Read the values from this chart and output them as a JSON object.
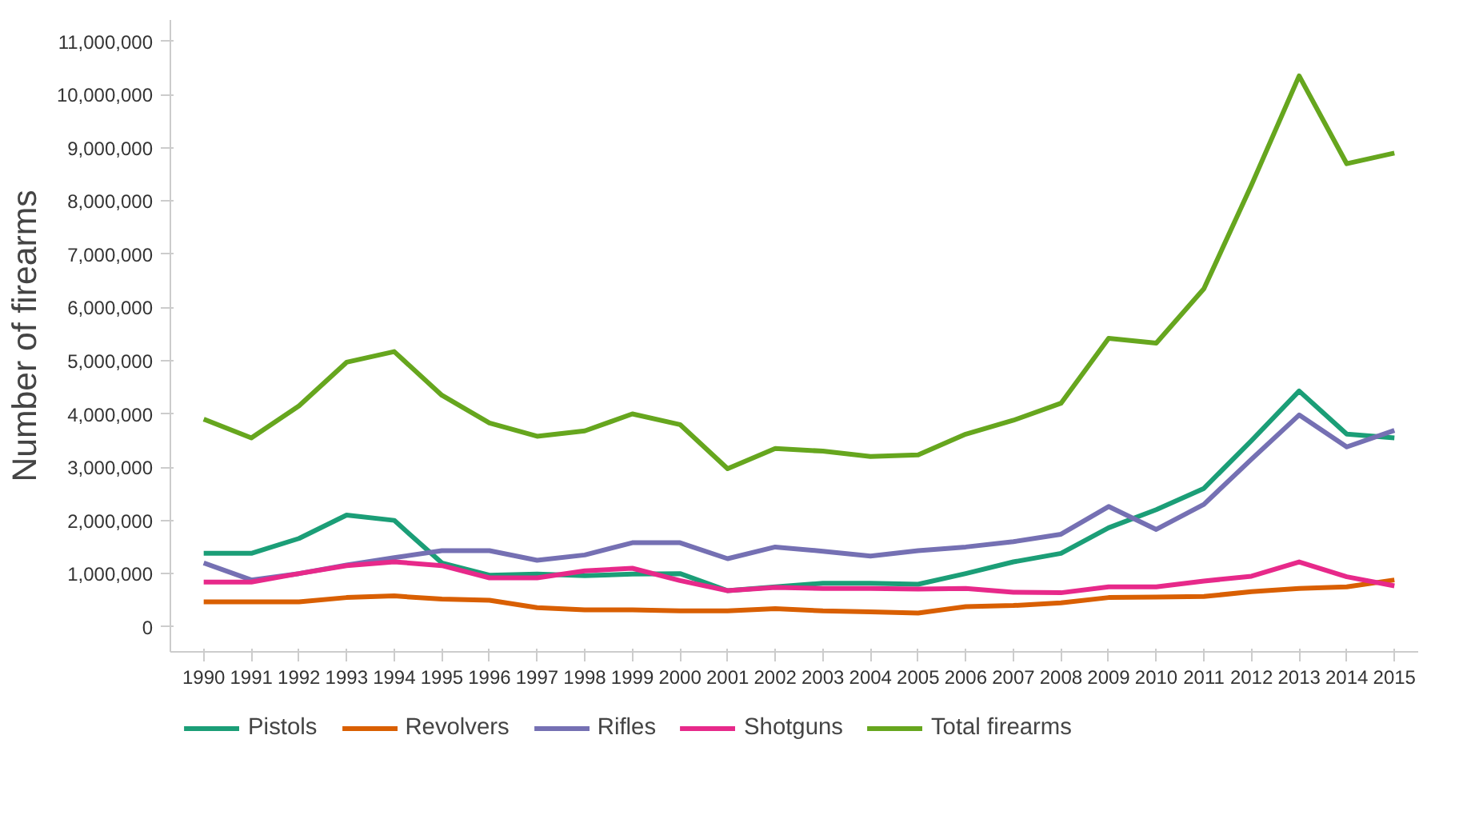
{
  "chart_data": {
    "type": "line",
    "ylabel": "Number of firearms",
    "categories": [
      "1990",
      "1991",
      "1992",
      "1993",
      "1994",
      "1995",
      "1996",
      "1997",
      "1998",
      "1999",
      "2000",
      "2001",
      "2002",
      "2003",
      "2004",
      "2005",
      "2006",
      "2007",
      "2008",
      "2009",
      "2010",
      "2011",
      "2012",
      "2013",
      "2014",
      "2015"
    ],
    "series": [
      {
        "name": "Pistols",
        "color": "#1b9e77",
        "values": [
          1380000,
          1380000,
          1660000,
          2100000,
          2000000,
          1200000,
          970000,
          990000,
          960000,
          990000,
          1000000,
          680000,
          750000,
          820000,
          820000,
          800000,
          1000000,
          1220000,
          1380000,
          1860000,
          2200000,
          2600000,
          3500000,
          4430000,
          3620000,
          3550000
        ]
      },
      {
        "name": "Revolvers",
        "color": "#d95f02",
        "values": [
          470000,
          470000,
          470000,
          550000,
          580000,
          520000,
          500000,
          360000,
          320000,
          320000,
          300000,
          300000,
          340000,
          300000,
          280000,
          260000,
          380000,
          400000,
          450000,
          550000,
          560000,
          570000,
          660000,
          720000,
          750000,
          880000
        ]
      },
      {
        "name": "Rifles",
        "color": "#7570b3",
        "values": [
          1200000,
          880000,
          1000000,
          1160000,
          1300000,
          1430000,
          1430000,
          1250000,
          1350000,
          1580000,
          1580000,
          1280000,
          1500000,
          1420000,
          1330000,
          1430000,
          1500000,
          1600000,
          1740000,
          2260000,
          1830000,
          2300000,
          3150000,
          3980000,
          3380000,
          3690000
        ]
      },
      {
        "name": "Shotguns",
        "color": "#e7298a",
        "values": [
          840000,
          840000,
          1000000,
          1150000,
          1220000,
          1150000,
          920000,
          920000,
          1050000,
          1100000,
          870000,
          680000,
          740000,
          720000,
          720000,
          710000,
          720000,
          650000,
          640000,
          750000,
          750000,
          860000,
          950000,
          1220000,
          940000,
          770000
        ]
      },
      {
        "name": "Total firearms",
        "color": "#66a61e",
        "values": [
          3900000,
          3550000,
          4150000,
          4970000,
          5170000,
          4350000,
          3830000,
          3580000,
          3680000,
          4000000,
          3800000,
          2970000,
          3350000,
          3300000,
          3200000,
          3230000,
          3620000,
          3880000,
          4200000,
          5420000,
          5330000,
          6350000,
          8300000,
          10350000,
          8700000,
          8900000
        ]
      }
    ],
    "ylim": [
      -470000,
      11400000
    ],
    "yticks": [
      {
        "value": 0,
        "label": "0"
      },
      {
        "value": 1000000,
        "label": "1,000,000"
      },
      {
        "value": 2000000,
        "label": "2,000,000"
      },
      {
        "value": 3000000,
        "label": "3,000,000"
      },
      {
        "value": 4000000,
        "label": "4,000,000"
      },
      {
        "value": 5000000,
        "label": "5,000,000"
      },
      {
        "value": 6000000,
        "label": "6,000,000"
      },
      {
        "value": 7000000,
        "label": "7,000,000"
      },
      {
        "value": 8000000,
        "label": "8,000,000"
      },
      {
        "value": 9000000,
        "label": "9,000,000"
      },
      {
        "value": 10000000,
        "label": "10,000,000"
      },
      {
        "value": 11000000,
        "label": "11,000,000"
      }
    ],
    "grid": false,
    "legend": "bottom"
  }
}
